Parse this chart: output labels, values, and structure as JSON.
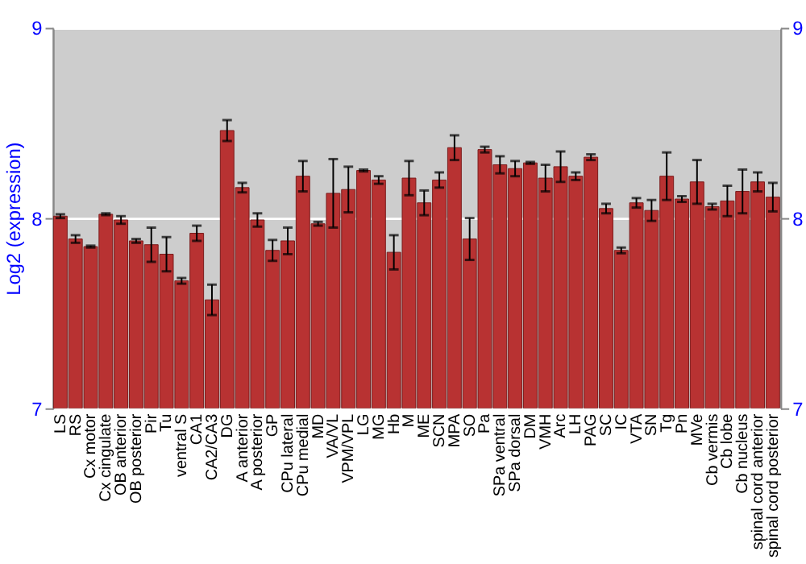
{
  "chart_data": {
    "type": "bar",
    "ylabel": "Log2 (expression)",
    "categories": [
      "LS",
      "RS",
      "Cx motor",
      "Cx cingulate",
      "OB anterior",
      "OB posterior",
      "Pir",
      "Tu",
      "ventral S",
      "CA1",
      "CA2/CA3",
      "DG",
      "A anterior",
      "A posterior",
      "GP",
      "CPu lateral",
      "CPu medial",
      "MD",
      "VA/VL",
      "VPM/VPL",
      "LG",
      "MG",
      "Hb",
      "M",
      "ME",
      "SCN",
      "MPA",
      "SO",
      "Pa",
      "SPa ventral",
      "SPa dorsal",
      "DM",
      "VMH",
      "Arc",
      "LH",
      "PAG",
      "SC",
      "IC",
      "VTA",
      "SN",
      "Tg",
      "Pn",
      "MVe",
      "Cb vermis",
      "Cb lobe",
      "Cb nucleus",
      "spinal cord anterior",
      "spinal cord posterior"
    ],
    "values": [
      8.01,
      7.89,
      7.85,
      8.02,
      7.99,
      7.88,
      7.86,
      7.81,
      7.67,
      7.92,
      7.57,
      8.46,
      8.16,
      7.99,
      7.83,
      7.88,
      8.22,
      7.97,
      8.13,
      8.15,
      8.25,
      8.2,
      7.82,
      8.21,
      8.08,
      8.2,
      8.37,
      7.89,
      8.36,
      8.28,
      8.26,
      8.29,
      8.21,
      8.27,
      8.22,
      8.32,
      8.05,
      7.83,
      8.08,
      8.04,
      8.22,
      8.1,
      8.19,
      8.06,
      8.09,
      8.14,
      8.19,
      8.11
    ],
    "errors": [
      0.01,
      0.02,
      0.005,
      0.005,
      0.02,
      0.01,
      0.09,
      0.09,
      0.015,
      0.04,
      0.08,
      0.055,
      0.025,
      0.035,
      0.055,
      0.07,
      0.08,
      0.01,
      0.18,
      0.12,
      0.005,
      0.02,
      0.09,
      0.09,
      0.065,
      0.04,
      0.065,
      0.11,
      0.015,
      0.045,
      0.04,
      0.005,
      0.07,
      0.08,
      0.02,
      0.015,
      0.025,
      0.015,
      0.025,
      0.055,
      0.125,
      0.015,
      0.115,
      0.015,
      0.08,
      0.115,
      0.05,
      0.075
    ],
    "color": "#b83232",
    "ylim": [
      7,
      9
    ],
    "yticks": [
      7,
      8,
      9
    ],
    "y2lim": [
      7,
      9
    ],
    "y2ticks": [
      7,
      8,
      9
    ],
    "grid": "y"
  }
}
